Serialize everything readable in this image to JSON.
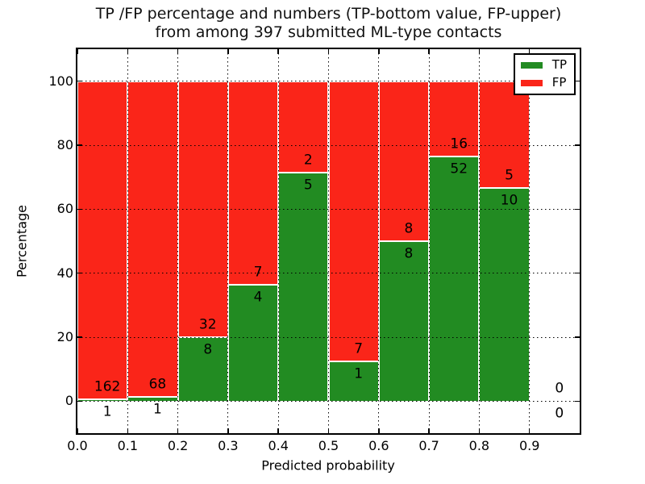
{
  "title": {
    "line1": "TP /FP percentage and numbers (TP-bottom value, FP-upper)",
    "line2": "from among 397 submitted ML-type contacts"
  },
  "colors": {
    "tp_green": "#228b22",
    "fp_red": "#fa2519",
    "axis": "#000000",
    "bar_edge": "#ffffff",
    "background": "#ffffff"
  },
  "chart_data": {
    "type": "bar",
    "stacked": true,
    "title": "TP /FP percentage and numbers (TP-bottom value, FP-upper)\nfrom among 397 submitted ML-type contacts",
    "xlabel": "Predicted probability",
    "ylabel": "Percentage",
    "xlim": [
      0.0,
      1.0
    ],
    "ylim": [
      -10,
      110
    ],
    "grid": "dotted",
    "total_contacts": 397,
    "xticks": [
      {
        "v": 0.0,
        "label": "0.0"
      },
      {
        "v": 0.1,
        "label": "0.1"
      },
      {
        "v": 0.2,
        "label": "0.2"
      },
      {
        "v": 0.3,
        "label": "0.3"
      },
      {
        "v": 0.4,
        "label": "0.4"
      },
      {
        "v": 0.5,
        "label": "0.5"
      },
      {
        "v": 0.6,
        "label": "0.6"
      },
      {
        "v": 0.7,
        "label": "0.7"
      },
      {
        "v": 0.8,
        "label": "0.8"
      },
      {
        "v": 0.9,
        "label": "0.9"
      }
    ],
    "yticks": [
      {
        "v": 0,
        "label": "0"
      },
      {
        "v": 20,
        "label": "20"
      },
      {
        "v": 40,
        "label": "40"
      },
      {
        "v": 60,
        "label": "60"
      },
      {
        "v": 80,
        "label": "80"
      },
      {
        "v": 100,
        "label": "100"
      }
    ],
    "legend": {
      "position": "upper right",
      "items": [
        {
          "label": "TP",
          "color": "#228b22"
        },
        {
          "label": "FP",
          "color": "#fa2519"
        }
      ]
    },
    "bins": [
      {
        "x_start": 0.0,
        "x_end": 0.1,
        "tp": 1,
        "fp": 162
      },
      {
        "x_start": 0.1,
        "x_end": 0.2,
        "tp": 1,
        "fp": 68
      },
      {
        "x_start": 0.2,
        "x_end": 0.3,
        "tp": 8,
        "fp": 32
      },
      {
        "x_start": 0.3,
        "x_end": 0.4,
        "tp": 4,
        "fp": 7
      },
      {
        "x_start": 0.4,
        "x_end": 0.5,
        "tp": 5,
        "fp": 2
      },
      {
        "x_start": 0.5,
        "x_end": 0.6,
        "tp": 1,
        "fp": 7
      },
      {
        "x_start": 0.6,
        "x_end": 0.7,
        "tp": 8,
        "fp": 8
      },
      {
        "x_start": 0.7,
        "x_end": 0.8,
        "tp": 52,
        "fp": 16
      },
      {
        "x_start": 0.8,
        "x_end": 0.9,
        "tp": 10,
        "fp": 5
      },
      {
        "x_start": 0.9,
        "x_end": 1.0,
        "tp": 0,
        "fp": 0
      }
    ]
  }
}
